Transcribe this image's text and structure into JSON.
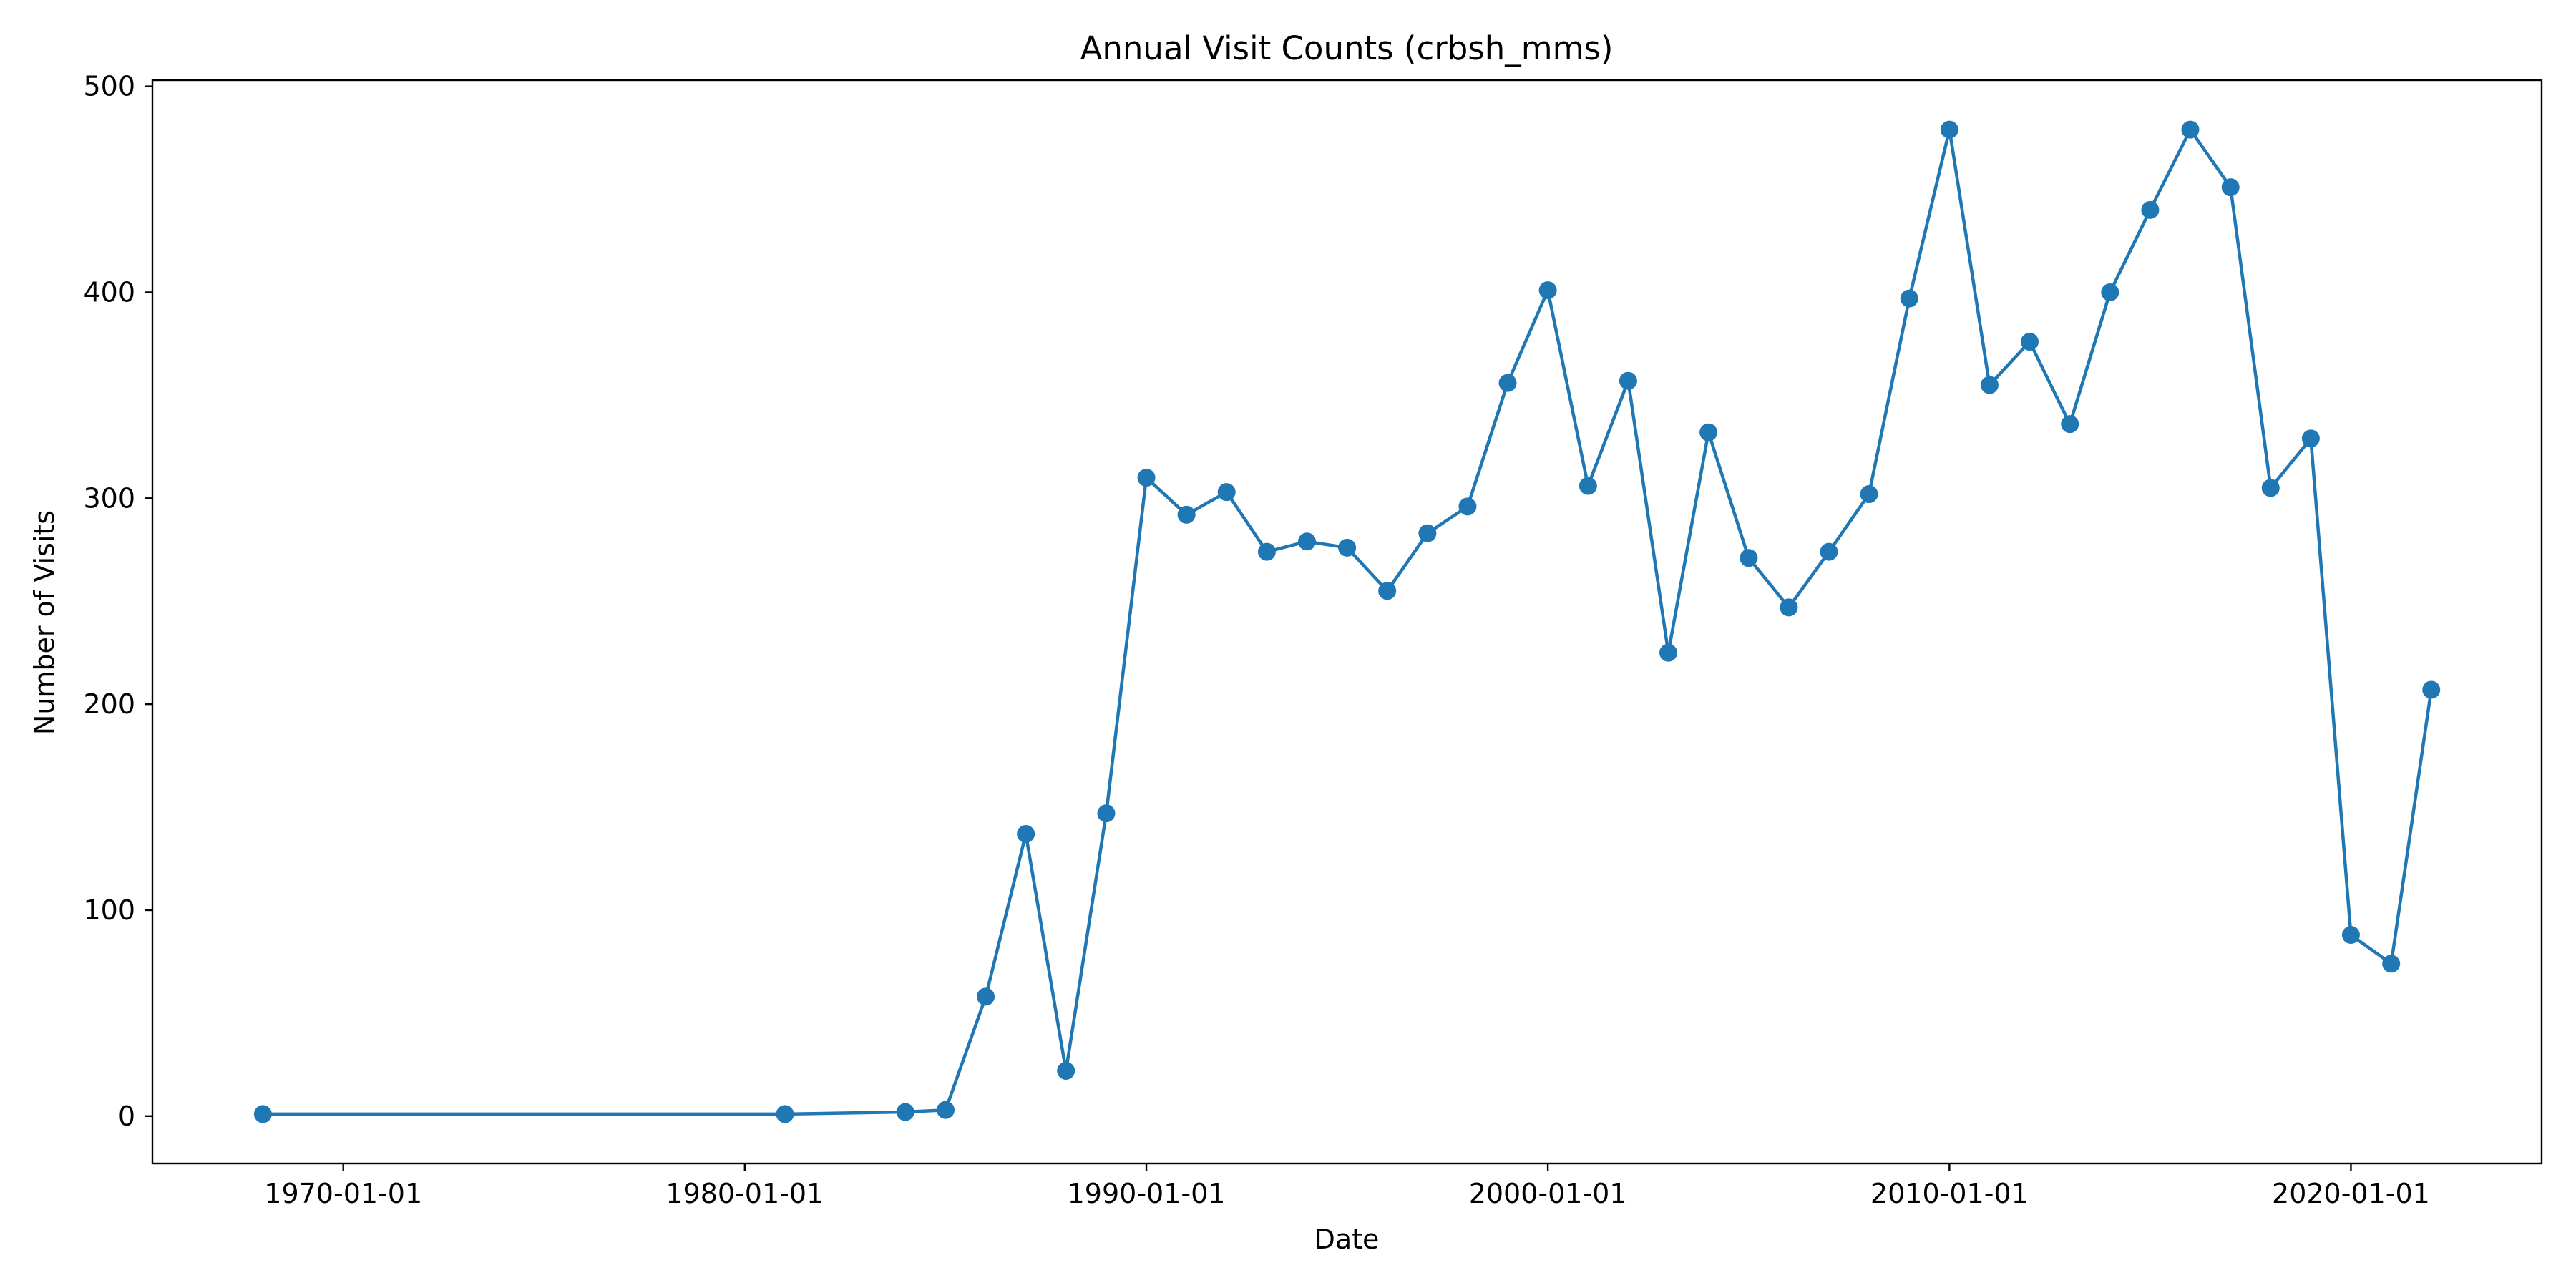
{
  "chart_data": {
    "type": "line",
    "title": "Annual Visit Counts (crbsh_mms)",
    "xlabel": "Date",
    "ylabel": "Number of Visits",
    "xlim": [
      "1965-04-01",
      "2024-10-01"
    ],
    "ylim": [
      -23,
      503
    ],
    "grid": false,
    "legend": "none",
    "colors": {
      "series": "#1f77b4",
      "axes": "#000000"
    },
    "x_ticks": [
      {
        "value": "1970-01-01",
        "label": "1970-01-01"
      },
      {
        "value": "1980-01-01",
        "label": "1980-01-01"
      },
      {
        "value": "1990-01-01",
        "label": "1990-01-01"
      },
      {
        "value": "2000-01-01",
        "label": "2000-01-01"
      },
      {
        "value": "2010-01-01",
        "label": "2010-01-01"
      },
      {
        "value": "2020-01-01",
        "label": "2020-01-01"
      }
    ],
    "y_ticks": [
      {
        "value": 0,
        "label": "0"
      },
      {
        "value": 100,
        "label": "100"
      },
      {
        "value": 200,
        "label": "200"
      },
      {
        "value": 300,
        "label": "300"
      },
      {
        "value": 400,
        "label": "400"
      },
      {
        "value": 500,
        "label": "500"
      }
    ],
    "series": [
      {
        "x": [
          "1968-01-01",
          "1981-01-01",
          "1984-01-01",
          "1985-01-01",
          "1986-01-01",
          "1987-01-01",
          "1988-01-01",
          "1989-01-01",
          "1990-01-01",
          "1991-01-01",
          "1992-01-01",
          "1993-01-01",
          "1994-01-01",
          "1995-01-01",
          "1996-01-01",
          "1997-01-01",
          "1998-01-01",
          "1999-01-01",
          "2000-01-01",
          "2001-01-01",
          "2002-01-01",
          "2003-01-01",
          "2004-01-01",
          "2005-01-01",
          "2006-01-01",
          "2007-01-01",
          "2008-01-01",
          "2009-01-01",
          "2010-01-01",
          "2011-01-01",
          "2012-01-01",
          "2013-01-01",
          "2014-01-01",
          "2015-01-01",
          "2016-01-01",
          "2017-01-01",
          "2018-01-01",
          "2019-01-01",
          "2020-01-01",
          "2021-01-01",
          "2022-01-01"
        ],
        "values": [
          1,
          1,
          2,
          3,
          58,
          137,
          22,
          147,
          310,
          292,
          303,
          274,
          279,
          276,
          255,
          283,
          296,
          356,
          401,
          306,
          357,
          225,
          332,
          271,
          247,
          274,
          302,
          397,
          479,
          355,
          376,
          336,
          400,
          440,
          479,
          451,
          305,
          329,
          88,
          74,
          207
        ]
      }
    ]
  }
}
